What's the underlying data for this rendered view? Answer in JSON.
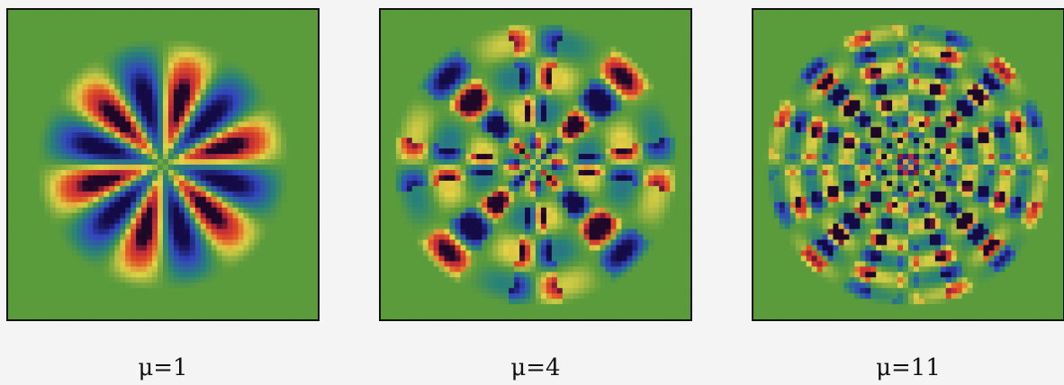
{
  "panels": [
    {
      "label": "μ=1"
    },
    {
      "label": "μ=4"
    },
    {
      "label": "μ=11"
    }
  ]
}
